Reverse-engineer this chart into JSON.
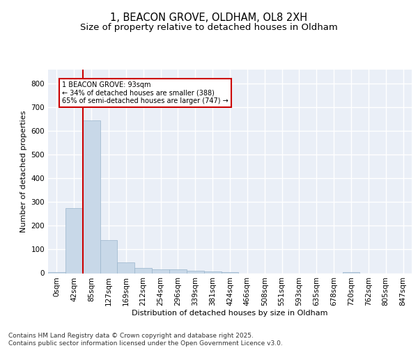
{
  "title_line1": "1, BEACON GROVE, OLDHAM, OL8 2XH",
  "title_line2": "Size of property relative to detached houses in Oldham",
  "xlabel": "Distribution of detached houses by size in Oldham",
  "ylabel": "Number of detached properties",
  "bar_color": "#c8d8e8",
  "bar_edge_color": "#9ab5cc",
  "bg_color": "#eaeff7",
  "grid_color": "#ffffff",
  "annotation_text": "1 BEACON GROVE: 93sqm\n← 34% of detached houses are smaller (388)\n65% of semi-detached houses are larger (747) →",
  "annotation_box_color": "#ffffff",
  "annotation_box_edge": "#cc0000",
  "vline_color": "#cc0000",
  "categories": [
    "0sqm",
    "42sqm",
    "85sqm",
    "127sqm",
    "169sqm",
    "212sqm",
    "254sqm",
    "296sqm",
    "339sqm",
    "381sqm",
    "424sqm",
    "466sqm",
    "508sqm",
    "551sqm",
    "593sqm",
    "635sqm",
    "678sqm",
    "720sqm",
    "762sqm",
    "805sqm",
    "847sqm"
  ],
  "values": [
    5,
    275,
    645,
    140,
    47,
    22,
    17,
    15,
    10,
    8,
    5,
    0,
    0,
    0,
    0,
    0,
    0,
    3,
    0,
    0,
    0
  ],
  "ylim": [
    0,
    860
  ],
  "yticks": [
    0,
    100,
    200,
    300,
    400,
    500,
    600,
    700,
    800
  ],
  "footer_text": "Contains HM Land Registry data © Crown copyright and database right 2025.\nContains public sector information licensed under the Open Government Licence v3.0.",
  "title_fontsize": 10.5,
  "subtitle_fontsize": 9.5,
  "footer_fontsize": 6.5,
  "axis_label_fontsize": 8,
  "tick_fontsize": 7.5
}
